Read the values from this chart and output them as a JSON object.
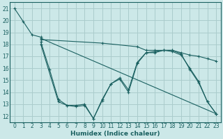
{
  "xlabel": "Humidex (Indice chaleur)",
  "xlim": [
    -0.5,
    23.5
  ],
  "ylim": [
    11.5,
    21.5
  ],
  "xticks": [
    0,
    1,
    2,
    3,
    4,
    5,
    6,
    7,
    8,
    9,
    10,
    11,
    12,
    13,
    14,
    15,
    16,
    17,
    18,
    19,
    20,
    21,
    22,
    23
  ],
  "yticks": [
    12,
    13,
    14,
    15,
    16,
    17,
    18,
    19,
    20,
    21
  ],
  "background_color": "#cce8e8",
  "grid_color": "#aacccc",
  "line_color": "#1a6060",
  "lines": [
    {
      "x": [
        0,
        1,
        2,
        3
      ],
      "y": [
        21.0,
        19.9,
        18.8,
        18.6
      ]
    },
    {
      "x": [
        3,
        4,
        5,
        6,
        7,
        8,
        9,
        10,
        11,
        12,
        13,
        14,
        15,
        16,
        17,
        18,
        19,
        20,
        21,
        22,
        23
      ],
      "y": [
        18.2,
        15.9,
        13.4,
        12.9,
        12.9,
        13.0,
        11.8,
        13.4,
        14.7,
        15.2,
        14.2,
        16.5,
        17.3,
        17.3,
        17.5,
        17.5,
        17.2,
        15.9,
        14.8,
        13.2,
        12.2
      ]
    },
    {
      "x": [
        3,
        5,
        6,
        7,
        8,
        9,
        10,
        11,
        12,
        13,
        14,
        15,
        16,
        17,
        18,
        19,
        20,
        21,
        22,
        23
      ],
      "y": [
        18.0,
        13.2,
        12.9,
        12.8,
        12.9,
        11.8,
        13.3,
        14.7,
        15.1,
        14.0,
        16.4,
        17.3,
        17.4,
        17.5,
        17.4,
        17.1,
        16.0,
        14.9,
        13.2,
        12.2
      ]
    },
    {
      "x": [
        3,
        10,
        14,
        15,
        16,
        17,
        18,
        19,
        20,
        21,
        22,
        23
      ],
      "y": [
        18.4,
        18.1,
        17.8,
        17.5,
        17.5,
        17.5,
        17.5,
        17.3,
        17.1,
        17.0,
        16.8,
        16.6
      ]
    },
    {
      "x": [
        3,
        23
      ],
      "y": [
        18.5,
        12.2
      ]
    }
  ]
}
